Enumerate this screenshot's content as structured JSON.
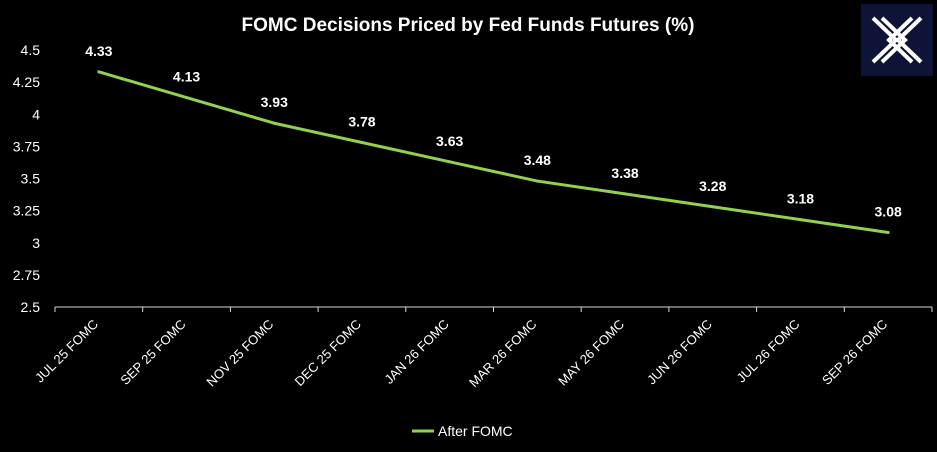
{
  "chart_data": {
    "type": "line",
    "title": "FOMC Decisions Priced by Fed Funds Futures (%)",
    "categories": [
      "JUL 25 FOMC",
      "SEP 25 FOMC",
      "NOV 25 FOMC",
      "DEC 25 FOMC",
      "JAN 26 FOMC",
      "MAR 26 FOMC",
      "MAY 26 FOMC",
      "JUN 26 FOMC",
      "JUL 26 FOMC",
      "SEP 26 FOMC"
    ],
    "series": [
      {
        "name": "After FOMC",
        "values": [
          4.33,
          4.13,
          3.93,
          3.78,
          3.63,
          3.48,
          3.38,
          3.28,
          3.18,
          3.08
        ],
        "color": "#92d050"
      }
    ],
    "y_ticks": [
      "2.5",
      "2.75",
      "3",
      "3.25",
      "3.5",
      "3.75",
      "4",
      "4.25",
      "4.5"
    ],
    "ylim": [
      2.5,
      4.5
    ],
    "grid": false,
    "legend": "bottom-center",
    "data_labels": [
      "4.33",
      "4.13",
      "3.93",
      "3.78",
      "3.63",
      "3.48",
      "3.38",
      "3.28",
      "3.18",
      "3.08"
    ],
    "background": "#000000",
    "text_color": "#ffffff"
  },
  "logo": {
    "icon": "x-logo-icon",
    "background": "#0e1438",
    "color": "#ffffff"
  }
}
